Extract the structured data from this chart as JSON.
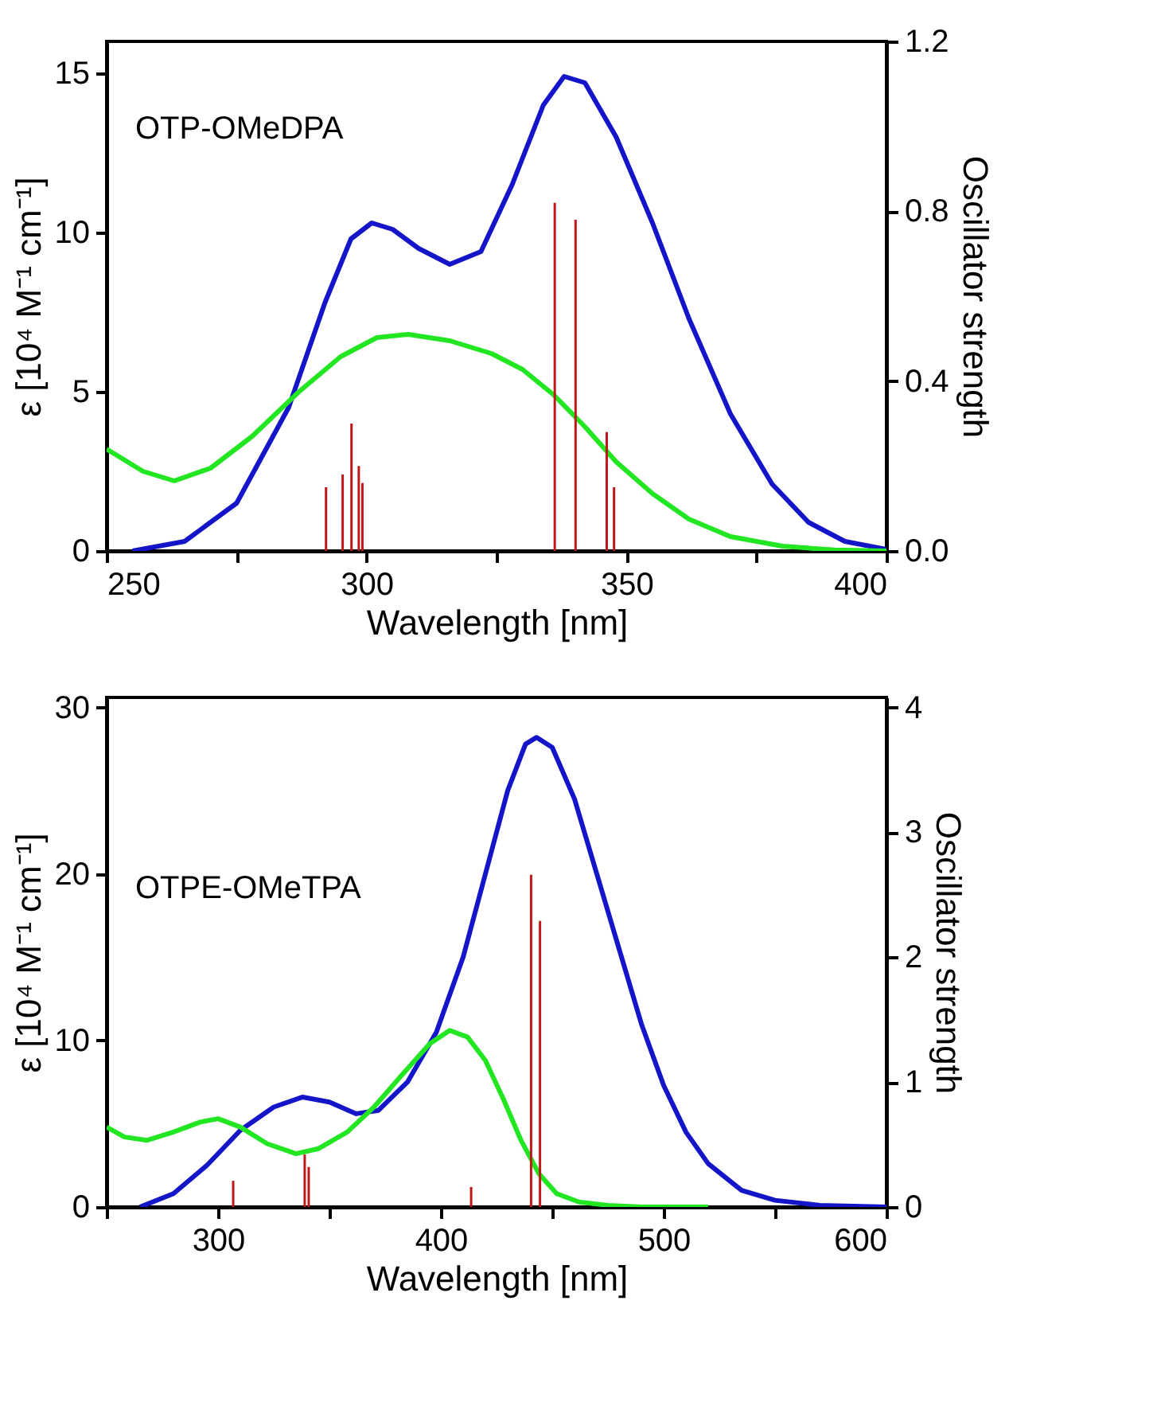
{
  "chart_data": [
    {
      "type": "line",
      "xlabel": "Wavelength [nm]",
      "ylabel": "ε [10⁴ M⁻¹ cm⁻¹]",
      "y2label": "Oscillator strength",
      "annotations": [
        "OTP-OMeDPA"
      ],
      "xlim": [
        250,
        400
      ],
      "xticks": [
        250,
        {
          "value": 275,
          "label": null
        },
        300,
        {
          "value": 325,
          "label": null
        },
        350,
        {
          "value": 375,
          "label": null
        },
        400
      ],
      "ylim": [
        0,
        16
      ],
      "yticks": [
        0,
        5,
        10,
        15
      ],
      "y2lim": [
        0,
        1.2
      ],
      "y2ticks": [
        {
          "value": 0,
          "label": "0.0"
        },
        0.4,
        0.8,
        1.2
      ],
      "grid": false,
      "legend": false,
      "series": [
        {
          "color": "#1414c8",
          "x": [
            255,
            265,
            275,
            285,
            292,
            297,
            301,
            305,
            310,
            316,
            322,
            328,
            334,
            338,
            342,
            348,
            355,
            362,
            370,
            378,
            385,
            392,
            400
          ],
          "values": [
            0,
            0.3,
            1.5,
            4.5,
            7.8,
            9.8,
            10.3,
            10.1,
            9.5,
            9.0,
            9.4,
            11.5,
            14,
            14.9,
            14.7,
            13,
            10.3,
            7.3,
            4.3,
            2.1,
            0.9,
            0.3,
            0.05
          ]
        },
        {
          "color": "#22e622",
          "x": [
            250,
            257,
            263,
            270,
            278,
            287,
            295,
            302,
            308,
            316,
            324,
            330,
            336,
            342,
            348,
            355,
            362,
            370,
            380,
            390,
            400
          ],
          "values": [
            3.2,
            2.5,
            2.2,
            2.6,
            3.6,
            5.0,
            6.1,
            6.7,
            6.8,
            6.6,
            6.2,
            5.7,
            4.9,
            3.9,
            2.8,
            1.8,
            1.0,
            0.45,
            0.15,
            0.03,
            0
          ]
        },
        {
          "type": "bar",
          "axis": "y2",
          "color": "#c01818",
          "x": [
            292.2,
            295.4,
            297.1,
            298.5,
            299.2,
            336.2,
            340.2,
            346.2,
            347.6
          ],
          "values": [
            0.15,
            0.18,
            0.3,
            0.2,
            0.16,
            0.82,
            0.78,
            0.28,
            0.15
          ]
        }
      ]
    },
    {
      "type": "line",
      "xlabel": "Wavelength [nm]",
      "ylabel": "ε [10⁴ M⁻¹ cm⁻¹]",
      "y2label": "Oscillator strength",
      "annotations": [
        "OTPE-OMeTPA"
      ],
      "xlim": [
        250,
        600
      ],
      "xticks": [
        {
          "value": 250,
          "label": null
        },
        300,
        {
          "value": 350,
          "label": null
        },
        400,
        {
          "value": 450,
          "label": null
        },
        500,
        {
          "value": 550,
          "label": null
        },
        600
      ],
      "ylim": [
        0,
        30.6
      ],
      "yticks": [
        0,
        10,
        20,
        30
      ],
      "y2lim": [
        0,
        4.08
      ],
      "y2ticks": [
        0,
        1,
        2,
        3,
        4
      ],
      "grid": false,
      "legend": false,
      "series": [
        {
          "color": "#1414c8",
          "x": [
            265,
            280,
            295,
            310,
            325,
            338,
            350,
            362,
            372,
            385,
            398,
            410,
            420,
            430,
            438,
            443,
            450,
            460,
            470,
            480,
            490,
            500,
            510,
            520,
            535,
            550,
            570,
            600
          ],
          "values": [
            0,
            0.8,
            2.5,
            4.6,
            6.0,
            6.6,
            6.3,
            5.6,
            5.8,
            7.5,
            10.5,
            15,
            20,
            25,
            27.8,
            28.2,
            27.6,
            24.5,
            20,
            15.5,
            11,
            7.3,
            4.5,
            2.6,
            1.0,
            0.4,
            0.1,
            0
          ]
        },
        {
          "color": "#22e622",
          "x": [
            250,
            258,
            268,
            280,
            292,
            300,
            310,
            322,
            335,
            345,
            358,
            370,
            383,
            395,
            404,
            412,
            420,
            428,
            436,
            444,
            452,
            462,
            475,
            490,
            520
          ],
          "values": [
            4.8,
            4.2,
            4.0,
            4.5,
            5.1,
            5.3,
            4.8,
            3.8,
            3.2,
            3.5,
            4.5,
            6.0,
            8.0,
            9.8,
            10.6,
            10.2,
            8.8,
            6.5,
            4.0,
            2.0,
            0.8,
            0.3,
            0.1,
            0,
            0
          ]
        },
        {
          "type": "bar",
          "axis": "y2",
          "color": "#c01818",
          "x": [
            306.8,
            338.9,
            340.7,
            413.6,
            440.5,
            444.5
          ],
          "values": [
            0.21,
            0.42,
            0.32,
            0.16,
            2.66,
            2.29
          ]
        }
      ]
    }
  ]
}
